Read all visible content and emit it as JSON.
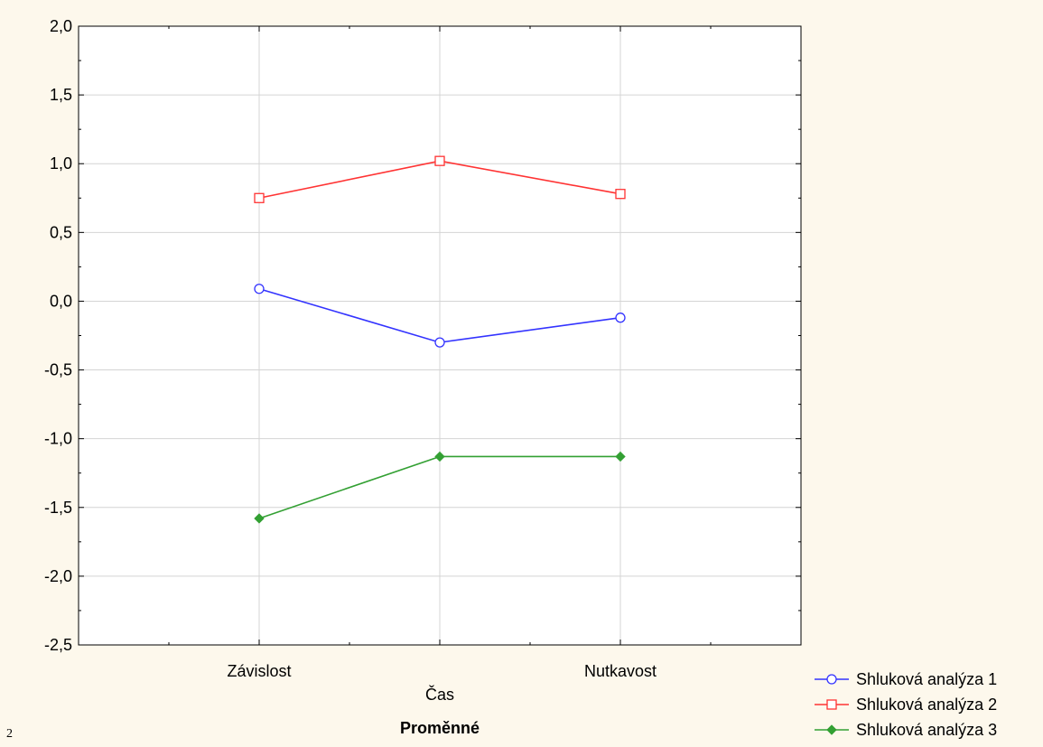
{
  "page_number": "2",
  "chart_data": {
    "type": "line",
    "categories": [
      "Závislost",
      "Čas",
      "Nutkavost"
    ],
    "category_labels_shown": [
      "Závislost",
      "",
      "Nutkavost"
    ],
    "xlabel": "Čas",
    "bottom_title": "Proměnné",
    "ylim": [
      -2.5,
      2.0
    ],
    "yticks": [
      2.0,
      1.5,
      1.0,
      0.5,
      0.0,
      -0.5,
      -1.0,
      -1.5,
      -2.0,
      -2.5
    ],
    "ytick_labels": [
      "2,0",
      "1,5",
      "1,0",
      "0,5",
      "0,0",
      "-0,5",
      "-1,0",
      "-1,5",
      "-2,0",
      "-2,5"
    ],
    "grid": true,
    "legend_position": "bottom-right",
    "series": [
      {
        "name": "Shluková analýza 1",
        "values": [
          0.09,
          -0.3,
          -0.12
        ],
        "color": "#3333ff",
        "marker": "circle"
      },
      {
        "name": "Shluková analýza 2",
        "values": [
          0.75,
          1.02,
          0.78
        ],
        "color": "#ff3333",
        "marker": "square"
      },
      {
        "name": "Shluková analýza 3",
        "values": [
          -1.58,
          -1.13,
          -1.13
        ],
        "color": "#33a033",
        "marker": "diamond"
      }
    ],
    "colors": {
      "background": "#fdf8ec",
      "plot_background": "#ffffff",
      "grid": "#d4d4d4"
    }
  }
}
